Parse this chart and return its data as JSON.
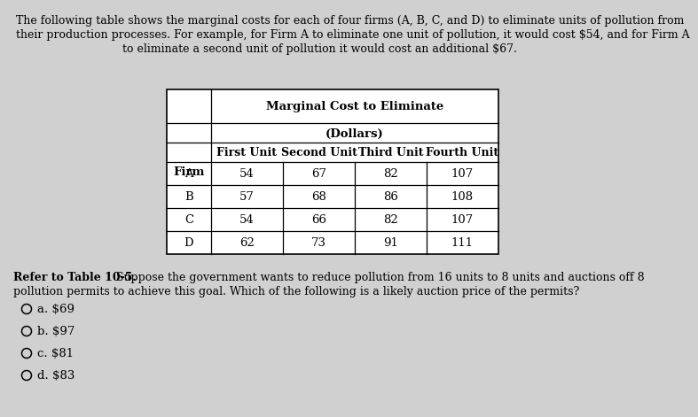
{
  "background_color": "#d0d0d0",
  "intro_text_line1": "The following table shows the marginal costs for each of four firms (A, B, C, and D) to eliminate units of pollution from",
  "intro_text_line2": "their production processes. For example, for Firm A to eliminate one unit of pollution, it would cost $54, and for Firm A",
  "intro_text_line3": "to eliminate a second unit of pollution it would cost an additional $67.",
  "table_header_main": "Marginal Cost to Eliminate",
  "table_header_sub": "(Dollars)",
  "col_headers": [
    "First Unit",
    "Second Unit",
    "Third Unit",
    "Fourth Unit"
  ],
  "table_rows": [
    [
      "A",
      "54",
      "67",
      "82",
      "107"
    ],
    [
      "B",
      "57",
      "68",
      "86",
      "108"
    ],
    [
      "C",
      "54",
      "66",
      "82",
      "107"
    ],
    [
      "D",
      "62",
      "73",
      "91",
      "111"
    ]
  ],
  "refer_bold": "Refer to Table 10-5.",
  "refer_normal": " Suppose the government wants to reduce pollution from 16 units to 8 units and auctions off 8",
  "refer_line2": "pollution permits to achieve this goal. Which of the following is a likely auction price of the permits?",
  "options": [
    "a. $69",
    "b. $97",
    "c. $81",
    "d. $83"
  ],
  "intro_fontsize": 9.0,
  "table_fontsize": 9.5,
  "refer_fontsize": 9.0,
  "options_fontsize": 9.5
}
